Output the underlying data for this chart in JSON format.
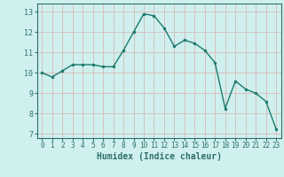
{
  "x": [
    0,
    1,
    2,
    3,
    4,
    5,
    6,
    7,
    8,
    9,
    10,
    11,
    12,
    13,
    14,
    15,
    16,
    17,
    18,
    19,
    20,
    21,
    22,
    23
  ],
  "y": [
    10.0,
    9.8,
    10.1,
    10.4,
    10.4,
    10.4,
    10.3,
    10.3,
    11.1,
    12.0,
    12.9,
    12.8,
    12.2,
    11.3,
    11.6,
    11.45,
    11.1,
    10.5,
    8.25,
    9.6,
    9.2,
    9.0,
    8.6,
    7.25
  ],
  "xlabel": "Humidex (Indice chaleur)",
  "xlim": [
    -0.5,
    23.5
  ],
  "ylim": [
    6.8,
    13.4
  ],
  "yticks": [
    7,
    8,
    9,
    10,
    11,
    12,
    13
  ],
  "xticks": [
    0,
    1,
    2,
    3,
    4,
    5,
    6,
    7,
    8,
    9,
    10,
    11,
    12,
    13,
    14,
    15,
    16,
    17,
    18,
    19,
    20,
    21,
    22,
    23
  ],
  "line_color": "#1a7a6e",
  "marker_color": "#1a7a6e",
  "bg_color": "#cff0ee",
  "grid_color": "#d8b8b8",
  "axes_color": "#2e6e6e",
  "tick_fontsize": 5.5,
  "xlabel_fontsize": 7.0
}
